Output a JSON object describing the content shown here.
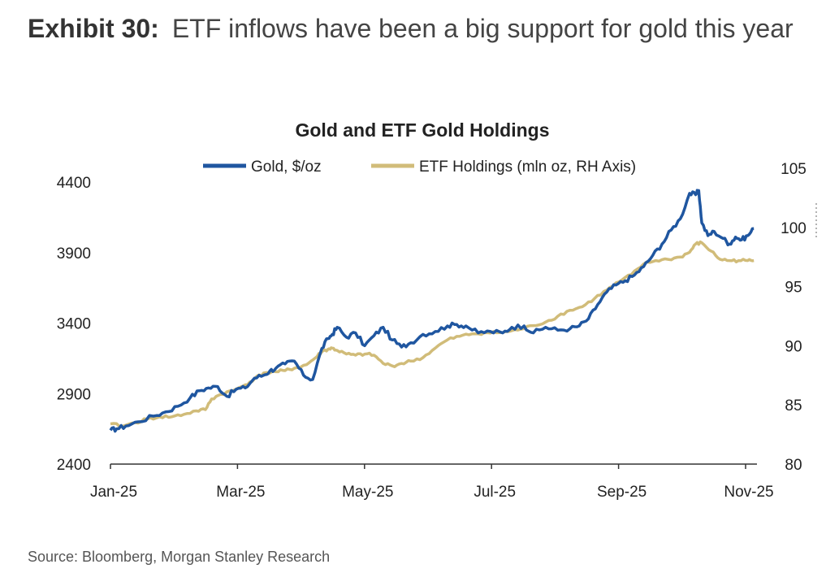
{
  "header": {
    "exhibit_label": "Exhibit 30:",
    "exhibit_title": "ETF inflows have been a big support for gold this year"
  },
  "footer": {
    "source": "Source: Bloomberg, Morgan Stanley Research"
  },
  "colors": {
    "gold": "#1f56a0",
    "etf": "#d1bc79",
    "axis": "#333333"
  },
  "chart_data": {
    "type": "line",
    "title": "Gold and ETF Gold Holdings",
    "xlabel": "",
    "ylabel": "",
    "ylabel_right": "",
    "x_ticks": [
      "Jan-25",
      "Mar-25",
      "May-25",
      "Jul-25",
      "Sep-25",
      "Nov-25"
    ],
    "x_range": [
      0,
      10.55
    ],
    "ylim": [
      2400,
      4400
    ],
    "y_ticks": [
      2400,
      2900,
      3400,
      3900,
      4400
    ],
    "ylim_right": [
      80,
      105
    ],
    "y_ticks_right": [
      80,
      85,
      90,
      95,
      100,
      105
    ],
    "legend": [
      "Gold, $/oz",
      "ETF Holdings (mln oz, RH Axis)"
    ],
    "series": [
      {
        "name": "Gold, $/oz",
        "axis": "left",
        "x": [
          0,
          0.1,
          0.25,
          0.45,
          0.7,
          0.9,
          1.1,
          1.3,
          1.45,
          1.6,
          1.75,
          1.9,
          2.05,
          2.2,
          2.35,
          2.5,
          2.6,
          2.7,
          2.85,
          3.0,
          3.15,
          3.3,
          3.45,
          3.55,
          3.62,
          3.7,
          3.85,
          4.0,
          4.15,
          4.3,
          4.45,
          4.6,
          4.75,
          4.9,
          5.1,
          5.3,
          5.5,
          5.65,
          5.8,
          6.0,
          6.2,
          6.4,
          6.55,
          6.75,
          6.9,
          7.1,
          7.3,
          7.5,
          7.65,
          7.8,
          7.95,
          8.1,
          8.25,
          8.4,
          8.55,
          8.7,
          8.85,
          9.0,
          9.15,
          9.3,
          9.45,
          9.55,
          9.6,
          9.65,
          9.75,
          9.85,
          10.0,
          10.1,
          10.2,
          10.3,
          10.4,
          10.5
        ],
        "values": [
          2640,
          2650,
          2670,
          2700,
          2740,
          2770,
          2810,
          2870,
          2920,
          2940,
          2950,
          2880,
          2930,
          2940,
          3010,
          3030,
          3060,
          3080,
          3110,
          3130,
          3030,
          3000,
          3220,
          3290,
          3320,
          3370,
          3300,
          3330,
          3240,
          3310,
          3370,
          3280,
          3230,
          3260,
          3320,
          3340,
          3380,
          3390,
          3380,
          3330,
          3340,
          3330,
          3370,
          3380,
          3330,
          3370,
          3350,
          3360,
          3380,
          3430,
          3530,
          3620,
          3670,
          3700,
          3740,
          3800,
          3880,
          3960,
          4060,
          4140,
          4320,
          4310,
          4340,
          4110,
          4020,
          4050,
          4000,
          3960,
          4010,
          3990,
          4020,
          4070
        ]
      },
      {
        "name": "ETF Holdings (mln oz, RH Axis)",
        "axis": "right",
        "x": [
          0,
          0.2,
          0.4,
          0.6,
          0.8,
          1.0,
          1.2,
          1.4,
          1.55,
          1.65,
          1.8,
          2.0,
          2.2,
          2.35,
          2.5,
          2.7,
          2.85,
          3.0,
          3.2,
          3.35,
          3.45,
          3.55,
          3.62,
          3.7,
          3.85,
          4.0,
          4.15,
          4.3,
          4.45,
          4.6,
          4.75,
          4.9,
          5.1,
          5.3,
          5.5,
          5.7,
          5.9,
          6.1,
          6.3,
          6.5,
          6.7,
          6.9,
          7.1,
          7.3,
          7.5,
          7.7,
          7.9,
          8.1,
          8.3,
          8.5,
          8.7,
          8.9,
          9.1,
          9.3,
          9.45,
          9.55,
          9.65,
          9.8,
          9.95,
          10.1,
          10.25,
          10.4,
          10.5
        ],
        "values": [
          83.4,
          83.2,
          83.5,
          83.8,
          84.0,
          84.0,
          84.2,
          84.5,
          84.6,
          85.5,
          85.9,
          86.2,
          86.7,
          87.2,
          87.7,
          87.8,
          87.9,
          88.1,
          88.4,
          89.0,
          89.5,
          89.7,
          89.8,
          89.6,
          89.3,
          89.2,
          89.3,
          89.2,
          88.5,
          88.3,
          88.5,
          88.7,
          89.0,
          89.8,
          90.5,
          90.8,
          91.0,
          91.1,
          91.1,
          91.2,
          91.4,
          91.7,
          92.0,
          92.5,
          93.0,
          93.3,
          94.0,
          94.7,
          95.4,
          96.0,
          96.9,
          97.2,
          97.3,
          97.5,
          97.9,
          98.6,
          98.7,
          98.0,
          97.3,
          97.2,
          97.2,
          97.2,
          97.2
        ]
      }
    ]
  }
}
